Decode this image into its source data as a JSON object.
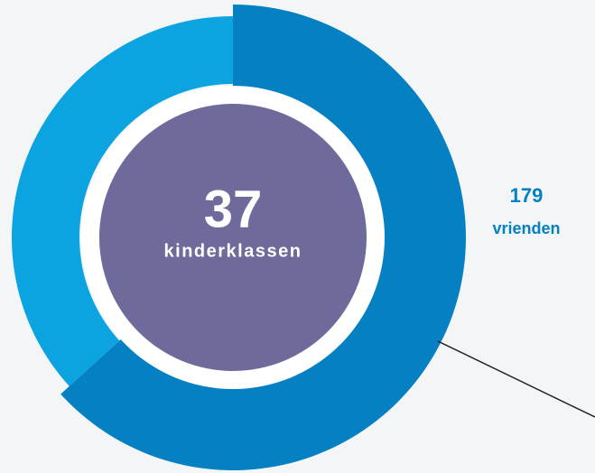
{
  "chart_data": {
    "type": "donut",
    "center_value": 37,
    "center_label": "kinderklassen",
    "categories": [
      "vrienden",
      null
    ],
    "values": [
      179,
      104
    ],
    "colors": [
      "#0580c2",
      "#0ba4e0"
    ],
    "center_color": "#6f6a9c"
  }
}
